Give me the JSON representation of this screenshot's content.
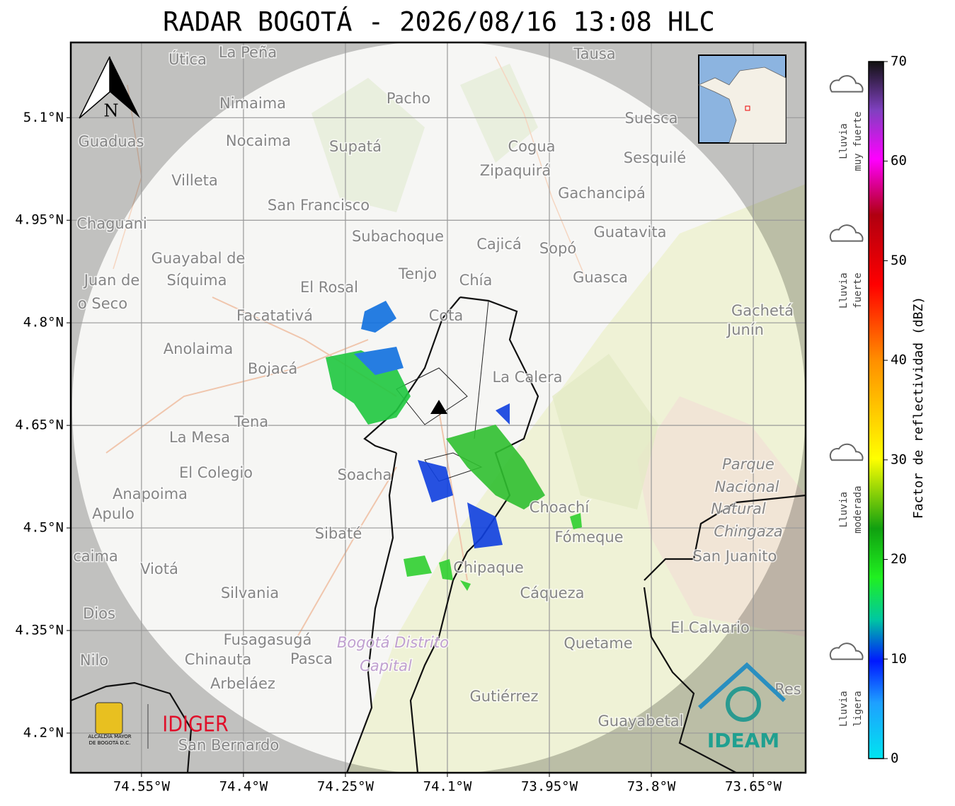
{
  "title": "RADAR BOGOTÁ - 2026/08/16 13:08 HLC",
  "map": {
    "xlim": [
      -74.654,
      -73.573
    ],
    "ylim": [
      4.142,
      5.21
    ],
    "lon_ticks": [
      {
        "value": -74.55,
        "label": "74.55°W"
      },
      {
        "value": -74.4,
        "label": "74.4°W"
      },
      {
        "value": -74.25,
        "label": "74.25°W"
      },
      {
        "value": -74.1,
        "label": "74.1°W"
      },
      {
        "value": -73.95,
        "label": "73.95°W"
      },
      {
        "value": -73.8,
        "label": "73.8°W"
      },
      {
        "value": -73.65,
        "label": "73.65°W"
      }
    ],
    "lat_ticks": [
      {
        "value": 5.1,
        "label": "5.1°N"
      },
      {
        "value": 4.95,
        "label": "4.95°N"
      },
      {
        "value": 4.8,
        "label": "4.8°N"
      },
      {
        "value": 4.65,
        "label": "4.65°N"
      },
      {
        "value": 4.5,
        "label": "4.5°N"
      },
      {
        "value": 4.35,
        "label": "4.35°N"
      },
      {
        "value": 4.2,
        "label": "4.2°N"
      }
    ],
    "north_label": "N",
    "places": [
      "La Peña",
      "Útica",
      "Tausa",
      "Pacho",
      "Nimaima",
      "Suesca",
      "Guaduas",
      "Nocaima",
      "Supatá",
      "Cogua",
      "Sesquilé",
      "Zipaquirá",
      "Villeta",
      "Gachancipá",
      "San Francisco",
      "Chaguani",
      "Guatavita",
      "Subachoque",
      "Cajicá",
      "Sopó",
      "Guayabal de",
      "Síquima",
      "Tenjo",
      "Chía",
      "Guasca",
      "Juan de",
      "El Rosal",
      "o Seco",
      "Facatativá",
      "Cota",
      "Gachetá",
      "Junín",
      "Anolaima",
      "Bojacá",
      "La Calera",
      "Tena",
      "La Mesa",
      "Parque",
      "El Colegio",
      "Soacha",
      "Nacional",
      "Anapoima",
      "Natural",
      "Choachí",
      "Apulo",
      "Chingaza",
      "Sibaté",
      "Fómeque",
      "San Juanito",
      "caima",
      "Viotá",
      "Chipaque",
      "Silvania",
      "Cáqueza",
      "Dios",
      "El Calvario",
      "Fusagasugá",
      "Bogotá Distrito",
      "Quetame",
      "Nilo",
      "Chinauta",
      "Pasca",
      "Capital",
      "Arbeláez",
      "Gutiérrez",
      "Guayabetal",
      "San Bernardo",
      "Res"
    ]
  },
  "colorbar": {
    "label": "Factor de reflectividad (dBZ)",
    "lim": [
      0,
      70
    ],
    "ticks": [
      0,
      10,
      20,
      30,
      40,
      50,
      60,
      70
    ],
    "categories": [
      {
        "value": 5,
        "lines": [
          "Lluvia",
          "ligera"
        ]
      },
      {
        "value": 25,
        "lines": [
          "Lluvia",
          "moderada"
        ]
      },
      {
        "value": 47,
        "lines": [
          "Lluvia",
          "fuerte"
        ]
      },
      {
        "value": 62,
        "lines": [
          "Lluvia",
          "muy fuerte"
        ]
      }
    ]
  },
  "logos": {
    "idiger": "IDIGER",
    "ideam": "IDEAM",
    "alcaldia": [
      "ALCALDÍA MAYOR",
      "DE BOGOTÁ D.C."
    ]
  }
}
